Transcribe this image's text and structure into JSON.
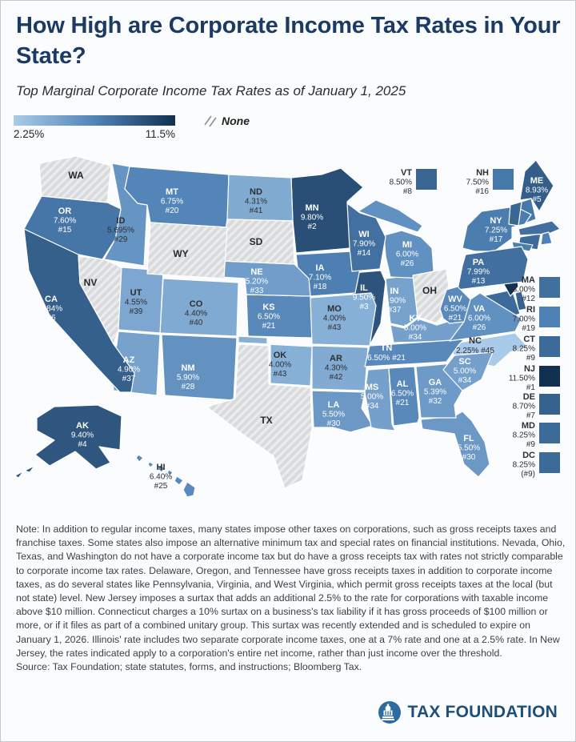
{
  "header": {
    "title": "How High are Corporate Income Tax Rates in Your State?",
    "subtitle": "Top Marginal Corporate Income Tax Rates as of January 1, 2025"
  },
  "legend": {
    "min_label": "2.25%",
    "max_label": "11.5%",
    "none_label": "None",
    "gradient_low": "#A9CBE9",
    "gradient_mid": "#4E81B5",
    "gradient_high": "#12304F",
    "none_fill": "#D9DADB"
  },
  "chart_data": {
    "type": "heatmap",
    "subtype": "us-state-choropleth",
    "title": "Top Marginal Corporate Income Tax Rates as of January 1, 2025",
    "value_unit": "percent",
    "value_range": [
      2.25,
      11.5
    ],
    "no_tax_states": [
      "NV",
      "OH",
      "SD",
      "TX",
      "WA",
      "WY"
    ],
    "states": [
      {
        "abbr": "AL",
        "rate": "6.50%",
        "rank": "#21",
        "value": 6.5
      },
      {
        "abbr": "AK",
        "rate": "9.40%",
        "rank": "#4",
        "value": 9.4
      },
      {
        "abbr": "AZ",
        "rate": "4.90%",
        "rank": "#37",
        "value": 4.9
      },
      {
        "abbr": "AR",
        "rate": "4.30%",
        "rank": "#42",
        "value": 4.3
      },
      {
        "abbr": "CA",
        "rate": "8.84%",
        "rank": "#6",
        "value": 8.84
      },
      {
        "abbr": "CO",
        "rate": "4.40%",
        "rank": "#40",
        "value": 4.4
      },
      {
        "abbr": "CT",
        "rate": "8.25%",
        "rank": "#9",
        "value": 8.25
      },
      {
        "abbr": "DE",
        "rate": "8.70%",
        "rank": "#7",
        "value": 8.7
      },
      {
        "abbr": "DC",
        "rate": "8.25%",
        "rank": "(#9)",
        "value": 8.25
      },
      {
        "abbr": "FL",
        "rate": "5.50%",
        "rank": "#30",
        "value": 5.5
      },
      {
        "abbr": "GA",
        "rate": "5.39%",
        "rank": "#32",
        "value": 5.39
      },
      {
        "abbr": "HI",
        "rate": "6.40%",
        "rank": "#25",
        "value": 6.4
      },
      {
        "abbr": "ID",
        "rate": "5.695%",
        "rank": "#29",
        "value": 5.695
      },
      {
        "abbr": "IL",
        "rate": "9.50%",
        "rank": "#3",
        "value": 9.5
      },
      {
        "abbr": "IN",
        "rate": "4.90%",
        "rank": "#37",
        "value": 4.9
      },
      {
        "abbr": "IA",
        "rate": "7.10%",
        "rank": "#18",
        "value": 7.1
      },
      {
        "abbr": "KS",
        "rate": "6.50%",
        "rank": "#21",
        "value": 6.5
      },
      {
        "abbr": "KY",
        "rate": "5.00%",
        "rank": "#34",
        "value": 5.0
      },
      {
        "abbr": "LA",
        "rate": "5.50%",
        "rank": "#30",
        "value": 5.5
      },
      {
        "abbr": "ME",
        "rate": "8.93%",
        "rank": "#5",
        "value": 8.93
      },
      {
        "abbr": "MD",
        "rate": "8.25%",
        "rank": "#9",
        "value": 8.25
      },
      {
        "abbr": "MA",
        "rate": "8.00%",
        "rank": "#12",
        "value": 8.0
      },
      {
        "abbr": "MI",
        "rate": "6.00%",
        "rank": "#26",
        "value": 6.0
      },
      {
        "abbr": "MN",
        "rate": "9.80%",
        "rank": "#2",
        "value": 9.8
      },
      {
        "abbr": "MS",
        "rate": "5.00%",
        "rank": "#34",
        "value": 5.0
      },
      {
        "abbr": "MO",
        "rate": "4.00%",
        "rank": "#43",
        "value": 4.0
      },
      {
        "abbr": "MT",
        "rate": "6.75%",
        "rank": "#20",
        "value": 6.75
      },
      {
        "abbr": "NE",
        "rate": "5.20%",
        "rank": "#33",
        "value": 5.2
      },
      {
        "abbr": "NV",
        "rate": "",
        "rank": "",
        "value": null,
        "none": true
      },
      {
        "abbr": "NH",
        "rate": "7.50%",
        "rank": "#16",
        "value": 7.5
      },
      {
        "abbr": "NJ",
        "rate": "11.50%",
        "rank": "#1",
        "value": 11.5
      },
      {
        "abbr": "NM",
        "rate": "5.90%",
        "rank": "#28",
        "value": 5.9
      },
      {
        "abbr": "NY",
        "rate": "7.25%",
        "rank": "#17",
        "value": 7.25
      },
      {
        "abbr": "NC",
        "rate": "2.25%",
        "rank": "#45",
        "value": 2.25
      },
      {
        "abbr": "ND",
        "rate": "4.31%",
        "rank": "#41",
        "value": 4.31
      },
      {
        "abbr": "OH",
        "rate": "",
        "rank": "",
        "value": null,
        "none": true
      },
      {
        "abbr": "OK",
        "rate": "4.00%",
        "rank": "#43",
        "value": 4.0
      },
      {
        "abbr": "OR",
        "rate": "7.60%",
        "rank": "#15",
        "value": 7.6
      },
      {
        "abbr": "PA",
        "rate": "7.99%",
        "rank": "#13",
        "value": 7.99
      },
      {
        "abbr": "RI",
        "rate": "7.00%",
        "rank": "#19",
        "value": 7.0
      },
      {
        "abbr": "SC",
        "rate": "5.00%",
        "rank": "#34",
        "value": 5.0
      },
      {
        "abbr": "SD",
        "rate": "",
        "rank": "",
        "value": null,
        "none": true
      },
      {
        "abbr": "TN",
        "rate": "6.50%",
        "rank": "#21",
        "value": 6.5
      },
      {
        "abbr": "TX",
        "rate": "",
        "rank": "",
        "value": null,
        "none": true
      },
      {
        "abbr": "UT",
        "rate": "4.55%",
        "rank": "#39",
        "value": 4.55
      },
      {
        "abbr": "VT",
        "rate": "8.50%",
        "rank": "#8",
        "value": 8.5
      },
      {
        "abbr": "VA",
        "rate": "6.00%",
        "rank": "#26",
        "value": 6.0
      },
      {
        "abbr": "WA",
        "rate": "",
        "rank": "",
        "value": null,
        "none": true
      },
      {
        "abbr": "WV",
        "rate": "6.50%",
        "rank": "#21",
        "value": 6.5
      },
      {
        "abbr": "WI",
        "rate": "7.90%",
        "rank": "#14",
        "value": 7.9
      },
      {
        "abbr": "WY",
        "rate": "",
        "rank": "",
        "value": null,
        "none": true
      }
    ]
  },
  "note": "Note: In addition to regular income taxes, many states impose other taxes on corporations, such as gross receipts taxes and franchise taxes. Some states also impose an alternative minimum tax and special rates on financial institutions. Nevada, Ohio, Texas, and Washington do not have a corporate income tax but do have a gross receipts tax with rates not strictly comparable to corporate income tax rates. Delaware, Oregon, and Tennessee have gross receipts taxes in addition to corporate income taxes, as do several states like Pennsylvania, Virginia, and West Virginia, which permit gross receipts taxes at the local (but not state) level. New Jersey imposes a surtax that adds an additional 2.5% to the rate for corporations with taxable income above $10 million. Connecticut charges a 10% surtax on a business's tax liability if it has gross proceeds of $100 million or more, or if it files as part of a combined unitary group. This surtax was recently extended and is scheduled to expire on January 1, 2026. Illinois' rate includes two separate corporate income taxes, one at a 7% rate and one at a 2.5% rate. In New Jersey, the rates indicated apply to a corporation's entire net income, rather than just income over the threshold.",
  "source": "Source: Tax Foundation; state statutes, forms, and instructions; Bloomberg Tax.",
  "footer": {
    "brand": "TAX FOUNDATION"
  }
}
